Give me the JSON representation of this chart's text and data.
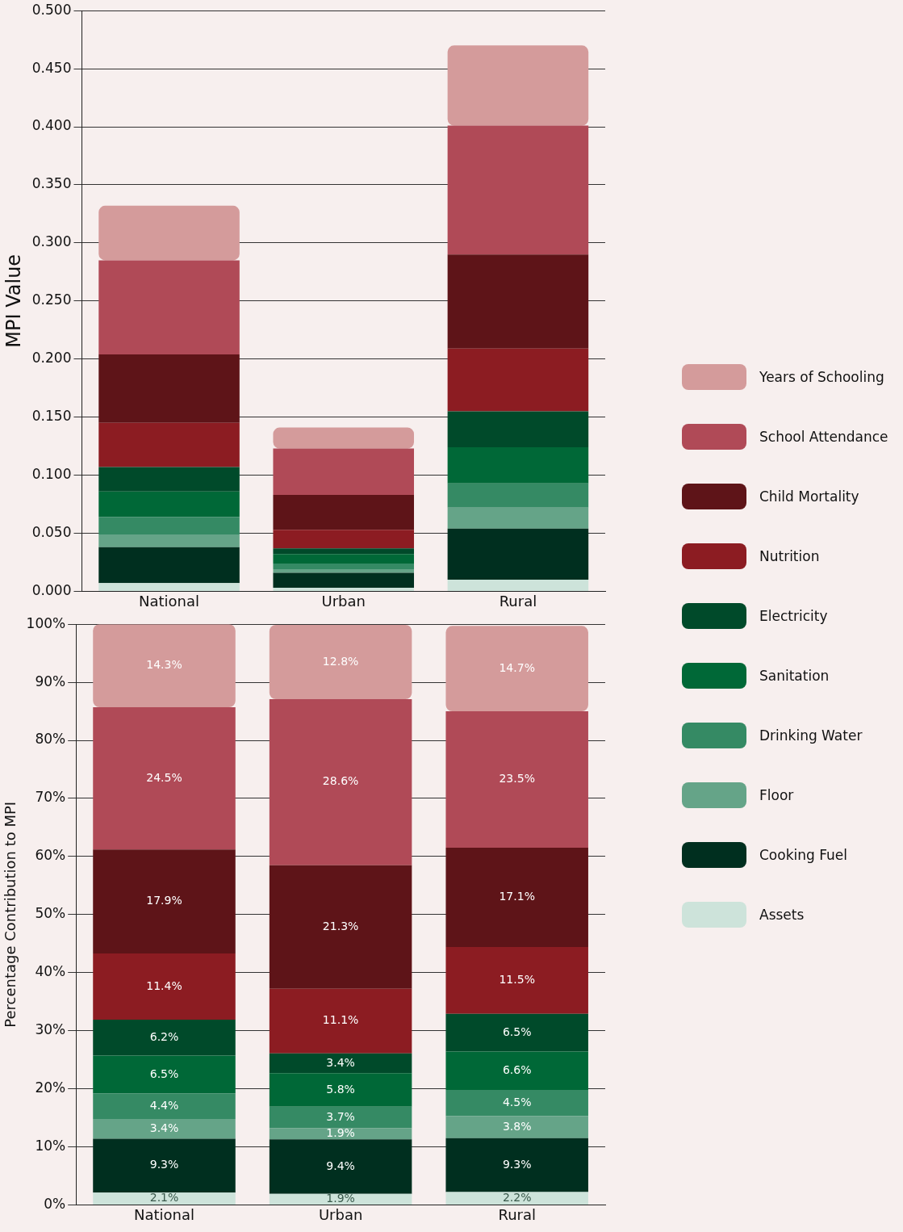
{
  "chart_data": [
    {
      "type": "bar",
      "ylabel": "MPI Value",
      "categories": [
        "National",
        "Urban",
        "Rural"
      ],
      "stacked": true,
      "grid": "y",
      "legend": "right",
      "ylim": [
        0,
        0.5
      ],
      "yticks": [
        {
          "value": 0,
          "label": "0.000"
        },
        {
          "value": 0.05,
          "label": "0.050"
        },
        {
          "value": 0.1,
          "label": "0.100"
        },
        {
          "value": 0.15,
          "label": "0.150"
        },
        {
          "value": 0.2,
          "label": "0.200"
        },
        {
          "value": 0.25,
          "label": "0.250"
        },
        {
          "value": 0.3,
          "label": "0.300"
        },
        {
          "value": 0.35,
          "label": "0.350"
        },
        {
          "value": 0.4,
          "label": "0.400"
        },
        {
          "value": 0.45,
          "label": "0.450"
        },
        {
          "value": 0.5,
          "label": "0.500"
        }
      ],
      "series": [
        {
          "name": "Assets",
          "color": "#cde3da",
          "values": [
            0.007,
            0.003,
            0.01
          ]
        },
        {
          "name": "Cooking Fuel",
          "color": "#002f1f",
          "values": [
            0.031,
            0.013,
            0.044
          ]
        },
        {
          "name": "Floor",
          "color": "#65a488",
          "values": [
            0.011,
            0.003,
            0.018
          ]
        },
        {
          "name": "Drinking Water",
          "color": "#358a64",
          "values": [
            0.015,
            0.005,
            0.021
          ]
        },
        {
          "name": "Sanitation",
          "color": "#006837",
          "values": [
            0.022,
            0.008,
            0.031
          ]
        },
        {
          "name": "Electricity",
          "color": "#004a2a",
          "values": [
            0.021,
            0.005,
            0.031
          ]
        },
        {
          "name": "Nutrition",
          "color": "#8c1c22",
          "values": [
            0.038,
            0.016,
            0.054
          ]
        },
        {
          "name": "Child Mortality",
          "color": "#5e1418",
          "values": [
            0.059,
            0.03,
            0.081
          ]
        },
        {
          "name": "School Attendance",
          "color": "#b04a57",
          "values": [
            0.081,
            0.04,
            0.111
          ]
        },
        {
          "name": "Years of Schooling",
          "color": "#d49b9b",
          "values": [
            0.047,
            0.018,
            0.069
          ]
        }
      ]
    },
    {
      "type": "bar",
      "ylabel": "Percentage Contribution to MPI",
      "categories": [
        "National",
        "Urban",
        "Rural"
      ],
      "stacked": true,
      "grid": "y",
      "ylim": [
        0,
        100
      ],
      "yticks": [
        {
          "value": 0,
          "label": "0%"
        },
        {
          "value": 10,
          "label": "10%"
        },
        {
          "value": 20,
          "label": "20%"
        },
        {
          "value": 30,
          "label": "30%"
        },
        {
          "value": 40,
          "label": "40%"
        },
        {
          "value": 50,
          "label": "50%"
        },
        {
          "value": 60,
          "label": "60%"
        },
        {
          "value": 70,
          "label": "70%"
        },
        {
          "value": 80,
          "label": "80%"
        },
        {
          "value": 90,
          "label": "90%"
        },
        {
          "value": 100,
          "label": "100%"
        }
      ],
      "series": [
        {
          "color": "#cde3da",
          "values": [
            2.1,
            1.9,
            2.2
          ],
          "value_labels": [
            "2.1%",
            "1.9%",
            "2.2%"
          ]
        },
        {
          "color": "#002f1f",
          "values": [
            9.3,
            9.4,
            9.3
          ],
          "value_labels": [
            "9.3%",
            "9.4%",
            "9.3%"
          ]
        },
        {
          "color": "#65a488",
          "values": [
            3.4,
            1.9,
            3.8
          ],
          "value_labels": [
            "3.4%",
            "1.9%",
            "3.8%"
          ]
        },
        {
          "color": "#358a64",
          "values": [
            4.4,
            3.7,
            4.5
          ],
          "value_labels": [
            "4.4%",
            "3.7%",
            "4.5%"
          ]
        },
        {
          "color": "#006837",
          "values": [
            6.5,
            5.8,
            6.6
          ],
          "value_labels": [
            "6.5%",
            "5.8%",
            "6.6%"
          ]
        },
        {
          "color": "#004a2a",
          "values": [
            6.2,
            3.4,
            6.5
          ],
          "value_labels": [
            "6.2%",
            "3.4%",
            "6.5%"
          ]
        },
        {
          "color": "#8c1c22",
          "values": [
            11.4,
            11.1,
            11.5
          ],
          "value_labels": [
            "11.4%",
            "11.1%",
            "11.5%"
          ]
        },
        {
          "color": "#5e1418",
          "values": [
            17.9,
            21.3,
            17.1
          ],
          "value_labels": [
            "17.9%",
            "21.3%",
            "17.1%"
          ]
        },
        {
          "color": "#b04a57",
          "values": [
            24.5,
            28.6,
            23.5
          ],
          "value_labels": [
            "24.5%",
            "28.6%",
            "23.5%"
          ]
        },
        {
          "color": "#d49b9b",
          "values": [
            14.3,
            12.8,
            14.7
          ],
          "value_labels": [
            "14.3%",
            "12.8%",
            "14.7%"
          ]
        }
      ]
    }
  ]
}
